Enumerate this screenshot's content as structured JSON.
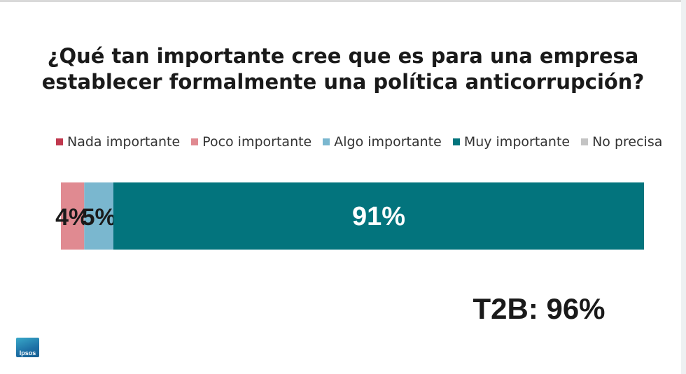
{
  "chart_data": {
    "type": "bar",
    "orientation": "horizontal-stacked-100",
    "title": "¿Qué tan importante cree que es para una empresa establecer formalmente una política anticorrupción?",
    "legend_position": "top",
    "series": [
      {
        "name": "Nada importante",
        "value": 0,
        "label": "",
        "color": "#c0384e"
      },
      {
        "name": "Poco importante",
        "value": 4,
        "label": "4%",
        "color": "#e08a91"
      },
      {
        "name": "Algo importante",
        "value": 5,
        "label": "5%",
        "color": "#7ab7cf"
      },
      {
        "name": "Muy importante",
        "value": 91,
        "label": "91%",
        "color": "#03747d"
      },
      {
        "name": "No precisa",
        "value": 0,
        "label": "",
        "color": "#c4c4c4"
      }
    ],
    "xlim": [
      0,
      100
    ],
    "grid": false
  },
  "summary": {
    "t2b_text": "T2B: 96%"
  },
  "brand": {
    "logo_text": "Ipsos"
  }
}
